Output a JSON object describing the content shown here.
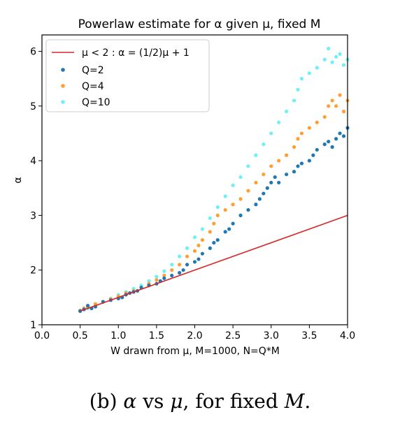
{
  "chart_data": {
    "type": "scatter",
    "title": "Powerlaw estimate for α given μ, fixed M",
    "xlabel": "W drawn from μ, M=1000, N=Q*M",
    "ylabel": "α",
    "xlim": [
      0.0,
      4.0
    ],
    "ylim": [
      1.0,
      6.3
    ],
    "xticks": [
      "0.0",
      "0.5",
      "1.0",
      "1.5",
      "2.0",
      "2.5",
      "3.0",
      "3.5",
      "4.0"
    ],
    "yticks": [
      "1",
      "2",
      "3",
      "4",
      "5",
      "6"
    ],
    "grid": false,
    "legend_position": "top-left",
    "line": {
      "name": "μ < 2 :  α = (1/2)μ + 1",
      "color": "#d62728",
      "x": [
        0.5,
        4.0
      ],
      "y": [
        1.25,
        3.0
      ]
    },
    "series": [
      {
        "name": "Q=2",
        "color": "#1f77b4",
        "x": [
          0.5,
          0.55,
          0.6,
          0.65,
          0.7,
          0.8,
          0.9,
          1.0,
          1.05,
          1.1,
          1.15,
          1.2,
          1.25,
          1.3,
          1.4,
          1.5,
          1.55,
          1.6,
          1.7,
          1.8,
          1.85,
          1.9,
          2.0,
          2.05,
          2.1,
          2.2,
          2.25,
          2.3,
          2.4,
          2.45,
          2.5,
          2.6,
          2.7,
          2.8,
          2.85,
          2.9,
          2.95,
          3.0,
          3.05,
          3.1,
          3.2,
          3.3,
          3.35,
          3.4,
          3.5,
          3.55,
          3.6,
          3.7,
          3.75,
          3.8,
          3.85,
          3.9,
          3.95,
          4.0
        ],
        "y": [
          1.25,
          1.28,
          1.35,
          1.3,
          1.33,
          1.42,
          1.45,
          1.48,
          1.5,
          1.55,
          1.58,
          1.6,
          1.62,
          1.68,
          1.72,
          1.75,
          1.8,
          1.85,
          1.9,
          1.95,
          2.0,
          2.1,
          2.15,
          2.2,
          2.3,
          2.4,
          2.5,
          2.55,
          2.7,
          2.75,
          2.85,
          3.0,
          3.1,
          3.2,
          3.3,
          3.4,
          3.5,
          3.6,
          3.7,
          3.6,
          3.75,
          3.8,
          3.9,
          3.95,
          4.0,
          4.1,
          4.2,
          4.3,
          4.35,
          4.25,
          4.4,
          4.5,
          4.45,
          4.6
        ]
      },
      {
        "name": "Q=4",
        "color": "#ff9f33",
        "x": [
          0.5,
          0.55,
          0.6,
          0.7,
          0.8,
          0.9,
          1.0,
          1.1,
          1.2,
          1.3,
          1.4,
          1.5,
          1.6,
          1.7,
          1.8,
          1.9,
          2.0,
          2.05,
          2.1,
          2.2,
          2.25,
          2.3,
          2.4,
          2.5,
          2.6,
          2.7,
          2.8,
          2.9,
          3.0,
          3.1,
          3.2,
          3.3,
          3.35,
          3.4,
          3.5,
          3.6,
          3.7,
          3.75,
          3.8,
          3.85,
          3.9,
          3.95,
          4.0
        ],
        "y": [
          1.26,
          1.3,
          1.33,
          1.38,
          1.42,
          1.47,
          1.52,
          1.58,
          1.62,
          1.68,
          1.75,
          1.82,
          1.9,
          2.0,
          2.1,
          2.25,
          2.35,
          2.45,
          2.55,
          2.7,
          2.85,
          3.0,
          3.1,
          3.2,
          3.3,
          3.45,
          3.6,
          3.75,
          3.9,
          4.0,
          4.1,
          4.25,
          4.4,
          4.5,
          4.6,
          4.7,
          4.8,
          5.0,
          5.1,
          5.0,
          5.2,
          4.9,
          5.1
        ]
      },
      {
        "name": "Q=10",
        "color": "#6ff0f5",
        "x": [
          0.5,
          0.6,
          0.7,
          0.8,
          0.9,
          1.0,
          1.1,
          1.2,
          1.3,
          1.4,
          1.5,
          1.6,
          1.7,
          1.8,
          1.9,
          2.0,
          2.1,
          2.2,
          2.3,
          2.4,
          2.5,
          2.6,
          2.7,
          2.8,
          2.9,
          3.0,
          3.1,
          3.2,
          3.3,
          3.35,
          3.4,
          3.5,
          3.6,
          3.7,
          3.75,
          3.8,
          3.85,
          3.9,
          3.95,
          4.0
        ],
        "y": [
          1.25,
          1.3,
          1.36,
          1.42,
          1.48,
          1.55,
          1.6,
          1.66,
          1.72,
          1.8,
          1.88,
          1.98,
          2.1,
          2.25,
          2.4,
          2.6,
          2.75,
          2.95,
          3.15,
          3.35,
          3.55,
          3.7,
          3.9,
          4.1,
          4.3,
          4.5,
          4.7,
          4.9,
          5.1,
          5.3,
          5.5,
          5.6,
          5.7,
          5.85,
          6.05,
          5.8,
          5.9,
          5.95,
          5.75,
          5.85
        ]
      }
    ]
  },
  "caption": {
    "prefix": "(b) ",
    "alpha": "α",
    "middle": " vs ",
    "mu": "μ",
    "suffix": ", for fixed ",
    "m": "M",
    "end": "."
  }
}
